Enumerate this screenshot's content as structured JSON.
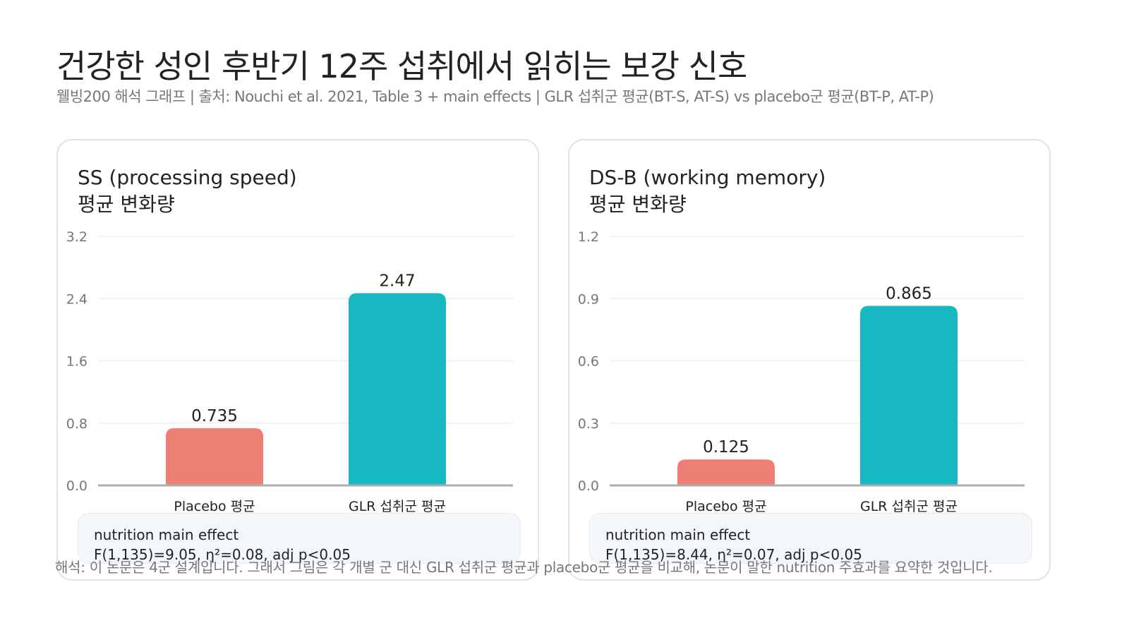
{
  "title": "건강한 성인 후반기 12주 섭취에서 읽히는 보강 신호",
  "subtitle": "웰빙200 해석 그래프 | 출처: Nouchi et al. 2021, Table 3 + main effects | GLR 섭취군 평균(BT-S, AT-S) vs placebo군 평균(BT-P, AT-P)",
  "footer": "해석: 이 논문은 4군 설계입니다. 그래서 그림은 각 개별 군 대신 GLR 섭취군 평균과 placebo군 평균을 비교해, 논문이 말한 nutrition 주효과를 요약한 것입니다.",
  "colors": {
    "placebo": "#ee7f74",
    "glr": "#17b8c2"
  },
  "chart_data": [
    {
      "type": "bar",
      "title": "SS (processing speed)",
      "subtitle": "평균 변화량",
      "categories": [
        "Placebo 평균",
        "GLR 섭취군 평균"
      ],
      "values": [
        0.735,
        2.47
      ],
      "data_labels": [
        "0.735",
        "2.47"
      ],
      "ylim": [
        0,
        3.2
      ],
      "yticks": [
        "0.0",
        "0.8",
        "1.6",
        "2.4",
        "3.2"
      ],
      "grid": true,
      "note_title": "nutrition main effect",
      "note_stats": "F(1,135)=9.05, η²=0.08, adj p<0.05"
    },
    {
      "type": "bar",
      "title": "DS-B (working memory)",
      "subtitle": "평균 변화량",
      "categories": [
        "Placebo 평균",
        "GLR 섭취군 평균"
      ],
      "values": [
        0.125,
        0.865
      ],
      "data_labels": [
        "0.125",
        "0.865"
      ],
      "ylim": [
        0,
        1.2
      ],
      "yticks": [
        "0.0",
        "0.3",
        "0.6",
        "0.9",
        "1.2"
      ],
      "grid": true,
      "note_title": "nutrition main effect",
      "note_stats": "F(1,135)=8.44, η²=0.07, adj p<0.05"
    }
  ]
}
